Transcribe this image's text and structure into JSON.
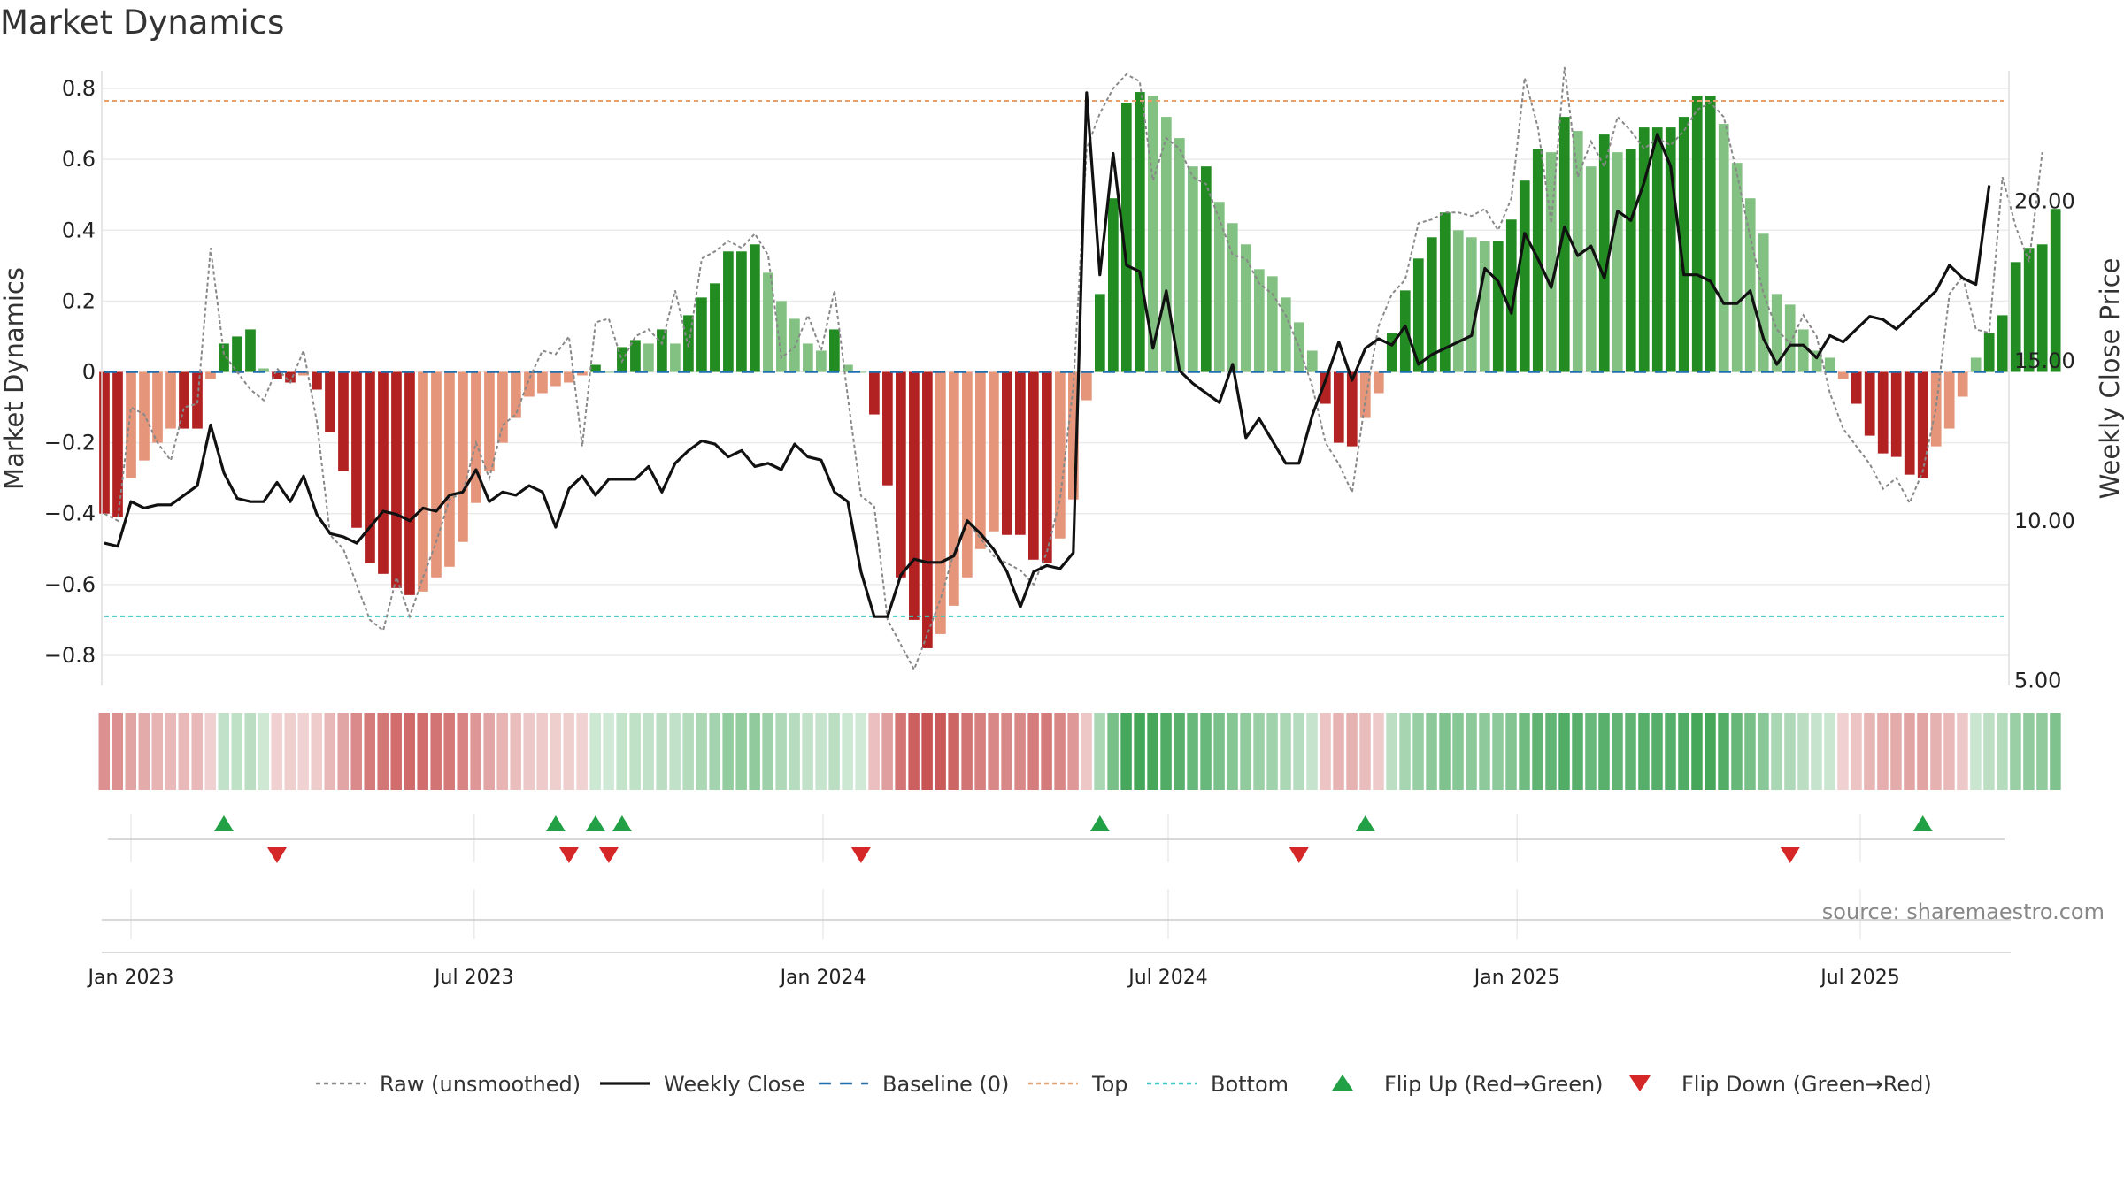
{
  "chart_data": {
    "type": "bar",
    "title": "Market Dynamics",
    "ylabel_left": "Market Dynamics",
    "ylabel_right": "Weekly Close Price",
    "ylim_left": [
      -0.88,
      0.86
    ],
    "ylim_right": [
      4.9,
      24.2
    ],
    "left_ticks": [
      "0.8",
      "0.6",
      "0.4",
      "0.2",
      "0",
      "−0.2",
      "−0.4",
      "−0.6",
      "−0.8"
    ],
    "left_tick_values": [
      0.8,
      0.6,
      0.4,
      0.2,
      0,
      -0.2,
      -0.4,
      -0.6,
      -0.8
    ],
    "right_ticks": [
      "20.00",
      "15.00",
      "10.00",
      "5.00"
    ],
    "right_tick_values": [
      20,
      15,
      10,
      5
    ],
    "x_ticks": [
      {
        "label": "Jan 2023",
        "date": "2023-01-01"
      },
      {
        "label": "Jul 2023",
        "date": "2023-07-01"
      },
      {
        "label": "Jan 2024",
        "date": "2024-01-01"
      },
      {
        "label": "Jul 2024",
        "date": "2024-07-01"
      },
      {
        "label": "Jan 2025",
        "date": "2025-01-01"
      },
      {
        "label": "Jul 2025",
        "date": "2025-07-01"
      }
    ],
    "start_date": "2022-12-18",
    "top_level": 0.765,
    "bottom_level": -0.69,
    "baseline": 0,
    "smoothed": [
      -0.4,
      -0.41,
      -0.3,
      -0.25,
      -0.2,
      -0.16,
      -0.16,
      -0.16,
      -0.02,
      0.08,
      0.1,
      0.12,
      0.01,
      -0.02,
      -0.03,
      -0.01,
      -0.05,
      -0.17,
      -0.28,
      -0.44,
      -0.54,
      -0.57,
      -0.61,
      -0.63,
      -0.62,
      -0.58,
      -0.55,
      -0.48,
      -0.37,
      -0.28,
      -0.2,
      -0.13,
      -0.07,
      -0.06,
      -0.04,
      -0.03,
      -0.01,
      0.02,
      0.0,
      0.07,
      0.09,
      0.08,
      0.12,
      0.08,
      0.16,
      0.21,
      0.25,
      0.34,
      0.34,
      0.36,
      0.28,
      0.2,
      0.15,
      0.08,
      0.06,
      0.12,
      0.02,
      0.0,
      -0.12,
      -0.32,
      -0.58,
      -0.7,
      -0.78,
      -0.74,
      -0.66,
      -0.58,
      -0.5,
      -0.45,
      -0.46,
      -0.46,
      -0.53,
      -0.54,
      -0.47,
      -0.36,
      -0.08,
      0.22,
      0.49,
      0.76,
      0.79,
      0.78,
      0.72,
      0.66,
      0.58,
      0.58,
      0.48,
      0.42,
      0.36,
      0.29,
      0.27,
      0.21,
      0.14,
      0.06,
      -0.09,
      -0.2,
      -0.21,
      -0.13,
      -0.06,
      0.11,
      0.23,
      0.32,
      0.38,
      0.45,
      0.4,
      0.38,
      0.37,
      0.37,
      0.43,
      0.54,
      0.63,
      0.62,
      0.72,
      0.68,
      0.58,
      0.67,
      0.62,
      0.63,
      0.69,
      0.69,
      0.69,
      0.72,
      0.78,
      0.78,
      0.7,
      0.59,
      0.49,
      0.39,
      0.22,
      0.19,
      0.12,
      0.06,
      0.04,
      -0.02,
      -0.09,
      -0.18,
      -0.23,
      -0.24,
      -0.29,
      -0.3,
      -0.21,
      -0.16,
      -0.07,
      0.04,
      0.11,
      0.16,
      0.31,
      0.35,
      0.36,
      0.46
    ],
    "raw": [
      -0.4,
      -0.42,
      -0.1,
      -0.12,
      -0.2,
      -0.25,
      -0.1,
      -0.09,
      0.35,
      0.05,
      0.0,
      -0.05,
      -0.08,
      0.01,
      -0.03,
      0.06,
      -0.14,
      -0.46,
      -0.5,
      -0.6,
      -0.7,
      -0.73,
      -0.58,
      -0.69,
      -0.58,
      -0.48,
      -0.36,
      -0.34,
      -0.2,
      -0.3,
      -0.15,
      -0.12,
      -0.02,
      0.06,
      0.05,
      0.1,
      -0.21,
      0.14,
      0.15,
      0.03,
      0.1,
      0.12,
      0.08,
      0.23,
      0.07,
      0.32,
      0.34,
      0.37,
      0.35,
      0.39,
      0.33,
      0.04,
      0.07,
      0.16,
      0.06,
      0.23,
      -0.07,
      -0.35,
      -0.38,
      -0.7,
      -0.77,
      -0.84,
      -0.74,
      -0.64,
      -0.51,
      -0.42,
      -0.47,
      -0.52,
      -0.54,
      -0.56,
      -0.6,
      -0.51,
      -0.36,
      -0.04,
      0.63,
      0.73,
      0.8,
      0.84,
      0.82,
      0.54,
      0.66,
      0.63,
      0.55,
      0.53,
      0.43,
      0.33,
      0.32,
      0.25,
      0.22,
      0.16,
      0.07,
      -0.04,
      -0.2,
      -0.26,
      -0.34,
      -0.08,
      0.13,
      0.22,
      0.26,
      0.42,
      0.43,
      0.45,
      0.45,
      0.44,
      0.46,
      0.4,
      0.49,
      0.83,
      0.69,
      0.42,
      0.86,
      0.55,
      0.65,
      0.58,
      0.72,
      0.68,
      0.63,
      0.66,
      0.64,
      0.68,
      0.74,
      0.76,
      0.72,
      0.56,
      0.38,
      0.22,
      0.12,
      0.08,
      0.16,
      0.1,
      -0.06,
      -0.16,
      -0.21,
      -0.26,
      -0.33,
      -0.3,
      -0.37,
      -0.28,
      -0.1,
      0.22,
      0.27,
      0.12,
      0.11,
      0.55,
      0.41,
      0.31,
      0.62
    ],
    "close": [
      9.3,
      9.2,
      10.6,
      10.4,
      10.5,
      10.5,
      10.8,
      11.1,
      13.0,
      11.5,
      10.7,
      10.6,
      10.6,
      11.2,
      10.6,
      11.4,
      10.2,
      9.6,
      9.5,
      9.3,
      9.8,
      10.3,
      10.2,
      10.0,
      10.4,
      10.3,
      10.8,
      10.9,
      11.6,
      10.6,
      10.9,
      10.8,
      11.1,
      10.9,
      9.8,
      11.0,
      11.4,
      10.8,
      11.3,
      11.3,
      11.3,
      11.7,
      10.9,
      11.8,
      12.2,
      12.5,
      12.4,
      12.0,
      12.2,
      11.7,
      11.8,
      11.6,
      12.4,
      12.0,
      11.9,
      10.9,
      10.6,
      8.4,
      7.0,
      7.0,
      8.3,
      8.8,
      8.7,
      8.7,
      8.9,
      10.0,
      9.6,
      9.1,
      8.4,
      7.3,
      8.4,
      8.6,
      8.5,
      9.0,
      23.4,
      17.7,
      21.5,
      18.0,
      17.8,
      15.4,
      17.2,
      14.7,
      14.3,
      14.0,
      13.7,
      14.9,
      12.6,
      13.2,
      12.5,
      11.8,
      11.8,
      13.3,
      14.4,
      15.6,
      14.4,
      15.4,
      15.7,
      15.5,
      16.1,
      14.9,
      15.2,
      15.4,
      15.6,
      15.8,
      17.9,
      17.5,
      16.5,
      19.0,
      18.2,
      17.3,
      19.2,
      18.3,
      18.6,
      17.6,
      19.7,
      19.4,
      20.6,
      22.1,
      21.1,
      17.7,
      17.7,
      17.5,
      16.8,
      16.8,
      17.2,
      15.7,
      14.9,
      15.5,
      15.5,
      15.1,
      15.8,
      15.6,
      16.0,
      16.4,
      16.3,
      16.0,
      16.4,
      16.8,
      17.2,
      18.0,
      17.6,
      17.4,
      20.5
    ],
    "flip_up_index": [
      9,
      34,
      37,
      39,
      75,
      95,
      137
    ],
    "flip_down_index": [
      13,
      35,
      38,
      57,
      90,
      127
    ],
    "legend": [
      {
        "label": "Raw (unsmoothed)",
        "style": "dotted",
        "color": "#888888"
      },
      {
        "label": "Weekly Close",
        "style": "solid",
        "color": "#111111"
      },
      {
        "label": "Baseline (0)",
        "style": "dashed",
        "color": "#1f6fae"
      },
      {
        "label": "Top",
        "style": "dotted",
        "color": "#e8a06a"
      },
      {
        "label": "Bottom",
        "style": "dotted",
        "color": "#3cc6c6"
      },
      {
        "label": "Flip Up (Red→Green)",
        "style": "triangle-up",
        "color": "#22a045"
      },
      {
        "label": "Flip Down (Green→Red)",
        "style": "triangle-down",
        "color": "#d62728"
      }
    ],
    "colors": {
      "strong_green": "#228b22",
      "light_green": "#82c182",
      "strong_red": "#b22222",
      "light_red": "#e5967a",
      "top_line": "#e8a06a",
      "bottom_line": "#3cc6c6",
      "baseline": "#1f6fae"
    },
    "source": "source: sharemaestro.com",
    "grid": true
  }
}
